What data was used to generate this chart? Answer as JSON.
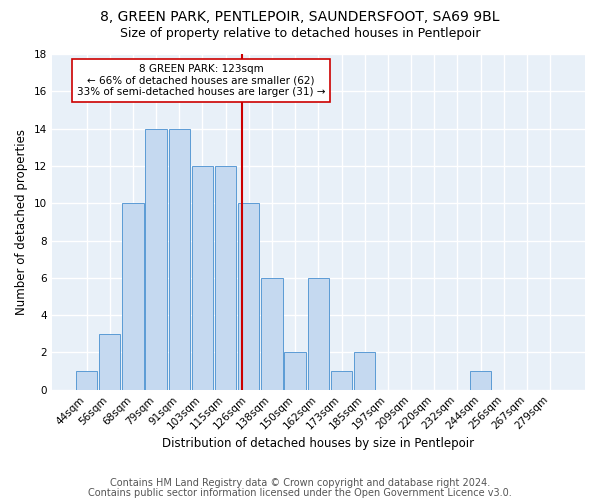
{
  "title": "8, GREEN PARK, PENTLEPOIR, SAUNDERSFOOT, SA69 9BL",
  "subtitle": "Size of property relative to detached houses in Pentlepoir",
  "xlabel": "Distribution of detached houses by size in Pentlepoir",
  "ylabel": "Number of detached properties",
  "footnote1": "Contains HM Land Registry data © Crown copyright and database right 2024.",
  "footnote2": "Contains public sector information licensed under the Open Government Licence v3.0.",
  "bar_labels": [
    "44sqm",
    "56sqm",
    "68sqm",
    "79sqm",
    "91sqm",
    "103sqm",
    "115sqm",
    "126sqm",
    "138sqm",
    "150sqm",
    "162sqm",
    "173sqm",
    "185sqm",
    "197sqm",
    "209sqm",
    "220sqm",
    "232sqm",
    "244sqm",
    "256sqm",
    "267sqm",
    "279sqm"
  ],
  "bar_values": [
    1,
    3,
    10,
    14,
    14,
    12,
    12,
    10,
    6,
    2,
    6,
    1,
    2,
    0,
    0,
    0,
    0,
    1,
    0,
    0,
    0
  ],
  "bar_color": "#c5d9f0",
  "bar_edge_color": "#5b9bd5",
  "annotation_title": "8 GREEN PARK: 123sqm",
  "annotation_line1": "← 66% of detached houses are smaller (62)",
  "annotation_line2": "33% of semi-detached houses are larger (31) →",
  "vline_color": "#cc0000",
  "ylim": [
    0,
    18
  ],
  "yticks": [
    0,
    2,
    4,
    6,
    8,
    10,
    12,
    14,
    16,
    18
  ],
  "bg_color": "#e8f0f8",
  "grid_color": "#ffffff",
  "title_fontsize": 10,
  "subtitle_fontsize": 9,
  "axis_label_fontsize": 8.5,
  "tick_fontsize": 7.5,
  "annotation_fontsize": 7.5,
  "footnote_fontsize": 7
}
